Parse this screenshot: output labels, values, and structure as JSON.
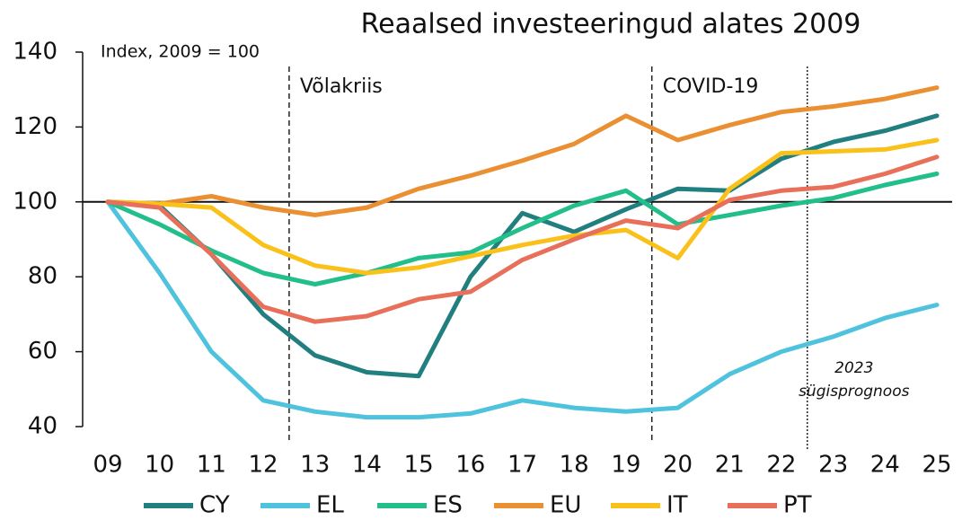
{
  "chart_data": {
    "type": "line",
    "title": "Reaalsed investeeringud alates 2009",
    "ylabel": "Index, 2009 = 100",
    "categories": [
      "09",
      "10",
      "11",
      "12",
      "13",
      "14",
      "15",
      "16",
      "17",
      "18",
      "19",
      "20",
      "21",
      "22",
      "23",
      "24",
      "25"
    ],
    "series": [
      {
        "name": "CY",
        "color": "#227f80",
        "values": [
          100,
          99,
          86,
          70,
          59,
          54.5,
          53.5,
          80,
          97,
          92,
          98,
          103.5,
          103,
          111.5,
          116,
          119,
          123
        ]
      },
      {
        "name": "EL",
        "color": "#4fc3de",
        "values": [
          100,
          81,
          60,
          47,
          44,
          42.5,
          42.5,
          43.5,
          47,
          45,
          44,
          45,
          54,
          60,
          64,
          69,
          72.5
        ]
      },
      {
        "name": "ES",
        "color": "#22bf8a",
        "values": [
          100,
          94,
          87,
          81,
          78,
          81,
          85,
          86.5,
          93,
          99,
          103,
          94,
          96.5,
          99,
          101,
          104.5,
          107.5
        ]
      },
      {
        "name": "EU",
        "color": "#eb8f33",
        "values": [
          100,
          99.5,
          101.5,
          98.5,
          96.5,
          98.5,
          103.5,
          107,
          111,
          115.5,
          123,
          116.5,
          120.5,
          124,
          125.5,
          127.5,
          130.5
        ]
      },
      {
        "name": "IT",
        "color": "#fac11a",
        "values": [
          100,
          99.5,
          98.5,
          88.5,
          83,
          81,
          82.5,
          85.5,
          88.5,
          91,
          92.5,
          85,
          103.5,
          113,
          113.5,
          114,
          116.5
        ]
      },
      {
        "name": "PT",
        "color": "#e8705a",
        "values": [
          100,
          98.5,
          86,
          72,
          68,
          69.5,
          74,
          76,
          84.5,
          90,
          95,
          93,
          100.5,
          103,
          104,
          107.5,
          112
        ]
      }
    ],
    "ylim": [
      40,
      140
    ],
    "yticks": [
      40,
      60,
      80,
      100,
      120,
      140
    ],
    "reference_line": 100,
    "vlines": [
      {
        "after": "12",
        "style": "dashed",
        "label": [
          "Võlakriis"
        ],
        "label_color": "#22bf8a"
      },
      {
        "after": "19",
        "style": "dashed",
        "label": [
          "COVID-19"
        ],
        "label_color": "#22bf8a"
      },
      {
        "after": "22",
        "style": "dotted",
        "label": [
          "2023",
          "sügisprognoos"
        ],
        "label_color": "#222222"
      }
    ],
    "legend": "bottom"
  }
}
